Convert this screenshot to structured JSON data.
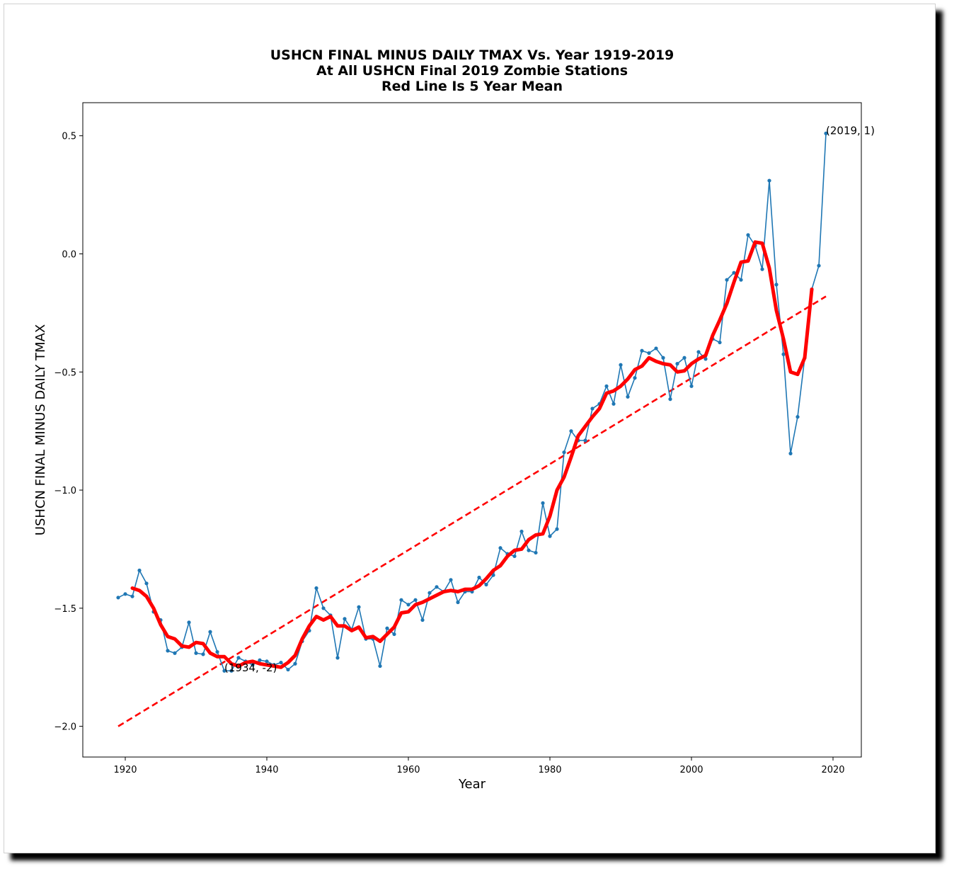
{
  "chart_data": {
    "type": "line",
    "title": [
      "USHCN FINAL MINUS DAILY TMAX Vs. Year 1919-2019",
      "At All USHCN Final 2019 Zombie Stations",
      "Red Line Is 5 Year Mean"
    ],
    "xlabel": "Year",
    "ylabel": "USHCN FINAL MINUS DAILY TMAX",
    "xlim": [
      1914,
      2024
    ],
    "ylim": [
      -2.13,
      0.64
    ],
    "xticks": [
      1920,
      1940,
      1960,
      1980,
      2000,
      2020
    ],
    "xtick_labels": [
      "1920",
      "1940",
      "1960",
      "1980",
      "2000",
      "2020"
    ],
    "yticks": [
      0.5,
      0.0,
      -0.5,
      -1.0,
      -1.5,
      -2.0
    ],
    "ytick_labels": [
      "0.5",
      "0.0",
      "−0.5",
      "−1.0",
      "−1.5",
      "−2.0"
    ],
    "grid": false,
    "series": [
      {
        "style": "line-markers",
        "color": "#1f77b4",
        "x": [
          1919,
          1920,
          1921,
          1922,
          1923,
          1924,
          1925,
          1926,
          1927,
          1928,
          1929,
          1930,
          1931,
          1932,
          1933,
          1934,
          1935,
          1936,
          1937,
          1938,
          1939,
          1940,
          1941,
          1942,
          1943,
          1944,
          1945,
          1946,
          1947,
          1948,
          1949,
          1950,
          1951,
          1952,
          1953,
          1954,
          1955,
          1956,
          1957,
          1958,
          1959,
          1960,
          1961,
          1962,
          1963,
          1964,
          1965,
          1966,
          1967,
          1968,
          1969,
          1970,
          1971,
          1972,
          1973,
          1974,
          1975,
          1976,
          1977,
          1978,
          1979,
          1980,
          1981,
          1982,
          1983,
          1984,
          1985,
          1986,
          1987,
          1988,
          1989,
          1990,
          1991,
          1992,
          1993,
          1994,
          1995,
          1996,
          1997,
          1998,
          1999,
          2000,
          2001,
          2002,
          2003,
          2004,
          2005,
          2006,
          2007,
          2008,
          2009,
          2010,
          2011,
          2012,
          2013,
          2014,
          2015,
          2016,
          2017,
          2018,
          2019
        ],
        "y": [
          -1.455,
          -1.44,
          -1.45,
          -1.34,
          -1.395,
          -1.515,
          -1.55,
          -1.68,
          -1.69,
          -1.665,
          -1.56,
          -1.69,
          -1.695,
          -1.6,
          -1.685,
          -1.765,
          -1.765,
          -1.71,
          -1.725,
          -1.74,
          -1.72,
          -1.725,
          -1.74,
          -1.73,
          -1.76,
          -1.735,
          -1.64,
          -1.595,
          -1.415,
          -1.5,
          -1.53,
          -1.71,
          -1.545,
          -1.59,
          -1.495,
          -1.63,
          -1.63,
          -1.745,
          -1.585,
          -1.61,
          -1.465,
          -1.485,
          -1.465,
          -1.55,
          -1.435,
          -1.41,
          -1.43,
          -1.38,
          -1.475,
          -1.43,
          -1.43,
          -1.37,
          -1.4,
          -1.36,
          -1.245,
          -1.27,
          -1.28,
          -1.175,
          -1.255,
          -1.265,
          -1.055,
          -1.195,
          -1.165,
          -0.84,
          -0.75,
          -0.79,
          -0.79,
          -0.655,
          -0.635,
          -0.56,
          -0.635,
          -0.47,
          -0.605,
          -0.525,
          -0.41,
          -0.42,
          -0.4,
          -0.44,
          -0.615,
          -0.465,
          -0.44,
          -0.56,
          -0.415,
          -0.445,
          -0.36,
          -0.375,
          -0.11,
          -0.08,
          -0.11,
          0.08,
          0.035,
          -0.065,
          0.31,
          -0.13,
          -0.425,
          -0.845,
          -0.69,
          -0.44,
          -0.15,
          -0.05,
          0.51
        ]
      },
      {
        "style": "thick-line",
        "color": "#ff0000",
        "label": "5 Year Mean",
        "x": [
          1921,
          1922,
          1923,
          1924,
          1925,
          1926,
          1927,
          1928,
          1929,
          1930,
          1931,
          1932,
          1933,
          1934,
          1935,
          1936,
          1937,
          1938,
          1939,
          1940,
          1941,
          1942,
          1943,
          1944,
          1945,
          1946,
          1947,
          1948,
          1949,
          1950,
          1951,
          1952,
          1953,
          1954,
          1955,
          1956,
          1957,
          1958,
          1959,
          1960,
          1961,
          1962,
          1963,
          1964,
          1965,
          1966,
          1967,
          1968,
          1969,
          1970,
          1971,
          1972,
          1973,
          1974,
          1975,
          1976,
          1977,
          1978,
          1979,
          1980,
          1981,
          1982,
          1983,
          1984,
          1985,
          1986,
          1987,
          1988,
          1989,
          1990,
          1991,
          1992,
          1993,
          1994,
          1995,
          1996,
          1997,
          1998,
          1999,
          2000,
          2001,
          2002,
          2003,
          2004,
          2005,
          2006,
          2007,
          2008,
          2009,
          2010,
          2011,
          2012,
          2013,
          2014,
          2015,
          2016,
          2017
        ],
        "y": [
          -1.415,
          -1.425,
          -1.45,
          -1.5,
          -1.57,
          -1.62,
          -1.63,
          -1.66,
          -1.665,
          -1.645,
          -1.65,
          -1.69,
          -1.705,
          -1.705,
          -1.735,
          -1.745,
          -1.73,
          -1.725,
          -1.735,
          -1.74,
          -1.745,
          -1.75,
          -1.73,
          -1.7,
          -1.63,
          -1.575,
          -1.535,
          -1.55,
          -1.535,
          -1.575,
          -1.575,
          -1.595,
          -1.58,
          -1.625,
          -1.62,
          -1.64,
          -1.61,
          -1.58,
          -1.52,
          -1.515,
          -1.485,
          -1.475,
          -1.46,
          -1.445,
          -1.43,
          -1.425,
          -1.43,
          -1.42,
          -1.42,
          -1.405,
          -1.375,
          -1.34,
          -1.32,
          -1.28,
          -1.255,
          -1.25,
          -1.21,
          -1.19,
          -1.185,
          -1.11,
          -1.0,
          -0.945,
          -0.86,
          -0.77,
          -0.73,
          -0.69,
          -0.655,
          -0.59,
          -0.58,
          -0.56,
          -0.53,
          -0.49,
          -0.475,
          -0.44,
          -0.455,
          -0.465,
          -0.47,
          -0.5,
          -0.495,
          -0.465,
          -0.445,
          -0.43,
          -0.345,
          -0.28,
          -0.21,
          -0.12,
          -0.035,
          -0.03,
          0.05,
          0.045,
          -0.06,
          -0.24,
          -0.36,
          -0.5,
          -0.51,
          -0.44,
          -0.15
        ]
      },
      {
        "style": "dashed-line",
        "color": "#ff0000",
        "label": "Trend",
        "x": [
          1919,
          2019
        ],
        "y": [
          -2.0,
          -0.18
        ]
      }
    ],
    "annotations": [
      {
        "text": "(1934, -2)",
        "x": 1934,
        "y": -1.765
      },
      {
        "text": "(2019, 1)",
        "x": 2019,
        "y": 0.51
      }
    ]
  }
}
